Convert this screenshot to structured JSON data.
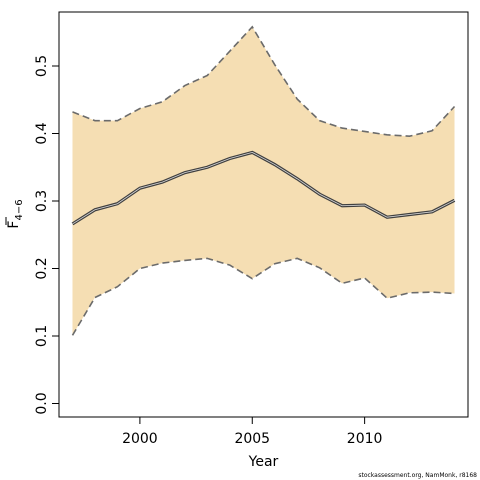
{
  "chart_data": {
    "type": "line",
    "title": "",
    "xlabel": "Year",
    "ylabel_main": "F",
    "ylabel_sub": "4−6",
    "xlim": [
      1996.4,
      2014.6
    ],
    "ylim": [
      -0.02,
      0.58
    ],
    "x_ticks": [
      2000,
      2005,
      2010
    ],
    "x_tick_labels": [
      "2000",
      "2005",
      "2010"
    ],
    "y_ticks": [
      0.0,
      0.1,
      0.2,
      0.3,
      0.4,
      0.5
    ],
    "y_tick_labels": [
      "0.0",
      "0.1",
      "0.2",
      "0.3",
      "0.4",
      "0.5"
    ],
    "x": [
      1997,
      1998,
      1999,
      2000,
      2001,
      2002,
      2003,
      2004,
      2005,
      2006,
      2007,
      2008,
      2009,
      2010,
      2011,
      2012,
      2013,
      2014
    ],
    "series": [
      {
        "role": "estimate",
        "values": [
          0.266,
          0.287,
          0.296,
          0.319,
          0.328,
          0.342,
          0.35,
          0.363,
          0.372,
          0.354,
          0.333,
          0.31,
          0.293,
          0.294,
          0.276,
          0.28,
          0.284,
          0.301
        ]
      },
      {
        "role": "upper",
        "values": [
          0.432,
          0.419,
          0.419,
          0.437,
          0.447,
          0.471,
          0.486,
          0.522,
          0.558,
          0.502,
          0.451,
          0.419,
          0.408,
          0.403,
          0.398,
          0.396,
          0.404,
          0.44
        ]
      },
      {
        "role": "lower",
        "values": [
          0.101,
          0.157,
          0.173,
          0.2,
          0.208,
          0.212,
          0.215,
          0.205,
          0.185,
          0.207,
          0.215,
          0.201,
          0.178,
          0.186,
          0.156,
          0.164,
          0.165,
          0.163
        ]
      }
    ],
    "grid": false,
    "colors": {
      "band": "#F5DEB3",
      "line": "#404040",
      "dashed": "#6b6b6b"
    }
  },
  "footer_text": "stockassessment.org, NamMonk, r8168"
}
